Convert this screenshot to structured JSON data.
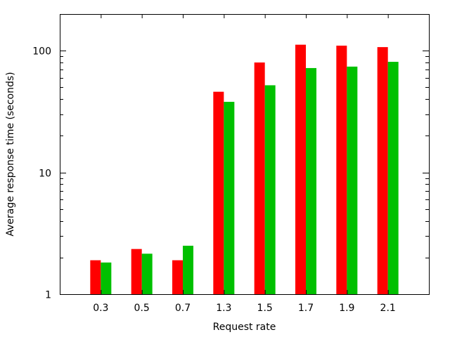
{
  "chart_data": {
    "type": "bar",
    "title": "",
    "xlabel": "Request rate",
    "ylabel": "Average response time (seconds)",
    "yscale": "log",
    "ylim": [
      1,
      200
    ],
    "yticks": [
      1,
      10,
      100
    ],
    "ytick_labels": [
      "1",
      "10",
      "100"
    ],
    "categories": [
      "0.3",
      "0.5",
      "0.7",
      "1.3",
      "1.5",
      "1.7",
      "1.9",
      "2.1"
    ],
    "series": [
      {
        "color": "#ff0000",
        "values": [
          1.9,
          2.35,
          1.9,
          46,
          80,
          112,
          110,
          107
        ]
      },
      {
        "color": "#00c000",
        "values": [
          1.82,
          2.15,
          2.5,
          38,
          52,
          72,
          74,
          81
        ]
      }
    ],
    "legend": "none",
    "grid": false
  }
}
